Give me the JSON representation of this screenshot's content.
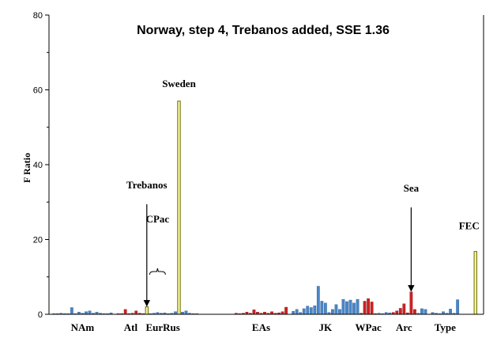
{
  "chart_data": {
    "type": "bar",
    "title": "Norway, step 4, Trebanos added, SSE 1.36",
    "ylabel": "F Ratio",
    "xlabel": "",
    "ylim": [
      0,
      80
    ],
    "yticks": [
      0,
      20,
      40,
      60,
      80
    ],
    "grid": false,
    "colors": {
      "blue": "#4a86c8",
      "red": "#cc2222",
      "yellow": "#f4f4a0",
      "yellow_edge": "#6e6e00"
    },
    "groups": [
      {
        "label": "NAm",
        "bars": [
          {
            "v": 0.2,
            "c": "blue"
          },
          {
            "v": 0.2,
            "c": "blue"
          },
          {
            "v": 0.3,
            "c": "blue"
          },
          {
            "v": 0.2,
            "c": "blue"
          },
          {
            "v": 0.2,
            "c": "blue"
          },
          {
            "v": 1.8,
            "c": "blue"
          },
          {
            "v": 0.2,
            "c": "blue"
          },
          {
            "v": 0.6,
            "c": "blue"
          },
          {
            "v": 0.3,
            "c": "blue"
          },
          {
            "v": 0.7,
            "c": "blue"
          },
          {
            "v": 0.9,
            "c": "blue"
          },
          {
            "v": 0.3,
            "c": "blue"
          },
          {
            "v": 0.6,
            "c": "blue"
          },
          {
            "v": 0.3,
            "c": "blue"
          },
          {
            "v": 0.2,
            "c": "blue"
          },
          {
            "v": 0.2,
            "c": "blue"
          },
          {
            "v": 0.4,
            "c": "blue"
          }
        ]
      },
      {
        "gap": 1
      },
      {
        "label": "Atl",
        "bars": [
          {
            "v": 0.2,
            "c": "red"
          },
          {
            "v": 0.2,
            "c": "red"
          },
          {
            "v": 1.3,
            "c": "red"
          },
          {
            "v": 0.2,
            "c": "red"
          },
          {
            "v": 0.3,
            "c": "red"
          },
          {
            "v": 0.9,
            "c": "red"
          },
          {
            "v": 0.3,
            "c": "red"
          },
          {
            "v": 0.2,
            "c": "red"
          }
        ]
      },
      {
        "label": "",
        "bars": [
          {
            "v": 2.0,
            "c": "yellow"
          }
        ]
      },
      {
        "label": "EurRus",
        "bars": [
          {
            "v": 0.2,
            "c": "blue"
          },
          {
            "v": 0.3,
            "c": "blue"
          },
          {
            "v": 0.5,
            "c": "blue"
          },
          {
            "v": 0.3,
            "c": "blue"
          },
          {
            "v": 0.4,
            "c": "blue"
          },
          {
            "v": 0.2,
            "c": "blue"
          },
          {
            "v": 0.3,
            "c": "blue"
          },
          {
            "v": 0.7,
            "c": "blue"
          }
        ]
      },
      {
        "label": "",
        "bars": [
          {
            "v": 57.0,
            "c": "yellow"
          }
        ]
      },
      {
        "label": "",
        "bars": [
          {
            "v": 0.6,
            "c": "blue"
          },
          {
            "v": 0.9,
            "c": "blue"
          },
          {
            "v": 0.3,
            "c": "blue"
          },
          {
            "v": 0.2,
            "c": "blue"
          },
          {
            "v": 0.2,
            "c": "blue"
          }
        ]
      },
      {
        "gap": 10
      },
      {
        "label": "EAs",
        "bars": [
          {
            "v": 0.3,
            "c": "red"
          },
          {
            "v": 0.2,
            "c": "red"
          },
          {
            "v": 0.3,
            "c": "red"
          },
          {
            "v": 0.6,
            "c": "red"
          },
          {
            "v": 0.3,
            "c": "red"
          },
          {
            "v": 1.2,
            "c": "red"
          },
          {
            "v": 0.6,
            "c": "red"
          },
          {
            "v": 0.3,
            "c": "red"
          },
          {
            "v": 0.6,
            "c": "red"
          },
          {
            "v": 0.3,
            "c": "red"
          },
          {
            "v": 0.7,
            "c": "red"
          },
          {
            "v": 0.3,
            "c": "red"
          },
          {
            "v": 0.4,
            "c": "red"
          },
          {
            "v": 0.7,
            "c": "red"
          },
          {
            "v": 1.9,
            "c": "red"
          }
        ]
      },
      {
        "gap": 1
      },
      {
        "label": "JK",
        "bars": [
          {
            "v": 0.8,
            "c": "blue"
          },
          {
            "v": 1.3,
            "c": "blue"
          },
          {
            "v": 0.5,
            "c": "blue"
          },
          {
            "v": 1.5,
            "c": "blue"
          },
          {
            "v": 2.2,
            "c": "blue"
          },
          {
            "v": 1.8,
            "c": "blue"
          },
          {
            "v": 2.3,
            "c": "blue"
          },
          {
            "v": 7.5,
            "c": "blue"
          },
          {
            "v": 3.5,
            "c": "blue"
          },
          {
            "v": 3.0,
            "c": "blue"
          },
          {
            "v": 0.5,
            "c": "blue"
          },
          {
            "v": 1.3,
            "c": "blue"
          },
          {
            "v": 2.6,
            "c": "blue"
          },
          {
            "v": 1.3,
            "c": "blue"
          },
          {
            "v": 4.0,
            "c": "blue"
          },
          {
            "v": 3.4,
            "c": "blue"
          },
          {
            "v": 3.8,
            "c": "blue"
          },
          {
            "v": 3.0,
            "c": "blue"
          },
          {
            "v": 4.0,
            "c": "blue"
          }
        ]
      },
      {
        "label": "WPac",
        "bars": [
          {
            "v": 0.3,
            "c": "red"
          },
          {
            "v": 3.5,
            "c": "red"
          },
          {
            "v": 4.2,
            "c": "red"
          },
          {
            "v": 3.3,
            "c": "red"
          },
          {
            "v": 0.2,
            "c": "red"
          }
        ]
      },
      {
        "label": "",
        "bars": [
          {
            "v": 0.3,
            "c": "blue"
          },
          {
            "v": 0.2,
            "c": "blue"
          },
          {
            "v": 0.5,
            "c": "blue"
          },
          {
            "v": 0.4,
            "c": "blue"
          }
        ]
      },
      {
        "label": "Arc",
        "bars": [
          {
            "v": 0.5,
            "c": "red"
          },
          {
            "v": 0.9,
            "c": "red"
          },
          {
            "v": 1.6,
            "c": "red"
          },
          {
            "v": 2.8,
            "c": "red"
          },
          {
            "v": 0.4,
            "c": "red"
          },
          {
            "v": 6.0,
            "c": "red"
          },
          {
            "v": 1.3,
            "c": "red"
          }
        ]
      },
      {
        "label": "",
        "bars": [
          {
            "v": 0.3,
            "c": "blue"
          },
          {
            "v": 1.5,
            "c": "blue"
          },
          {
            "v": 1.3,
            "c": "blue"
          }
        ]
      },
      {
        "gap": 1
      },
      {
        "label": "Type",
        "bars": [
          {
            "v": 0.5,
            "c": "blue"
          },
          {
            "v": 0.3,
            "c": "blue"
          },
          {
            "v": 0.2,
            "c": "blue"
          },
          {
            "v": 0.7,
            "c": "blue"
          },
          {
            "v": 0.3,
            "c": "blue"
          },
          {
            "v": 1.4,
            "c": "blue"
          },
          {
            "v": 0.3,
            "c": "blue"
          },
          {
            "v": 3.9,
            "c": "blue"
          }
        ]
      },
      {
        "gap": 4
      },
      {
        "label": "",
        "bars": [
          {
            "v": 16.8,
            "c": "yellow"
          }
        ]
      }
    ],
    "annotations": [
      {
        "text": "Sweden",
        "target_value": 57.0,
        "arrow": false
      },
      {
        "text": "Trebanos",
        "target_value": 2.0,
        "arrow": true
      },
      {
        "text": "CPac",
        "target_value": 0.5,
        "arrow": false,
        "bracket": true
      },
      {
        "text": "Sea",
        "target_value": 6.0,
        "arrow": true
      },
      {
        "text": "FEC",
        "target_value": 16.8,
        "arrow": false
      }
    ]
  }
}
